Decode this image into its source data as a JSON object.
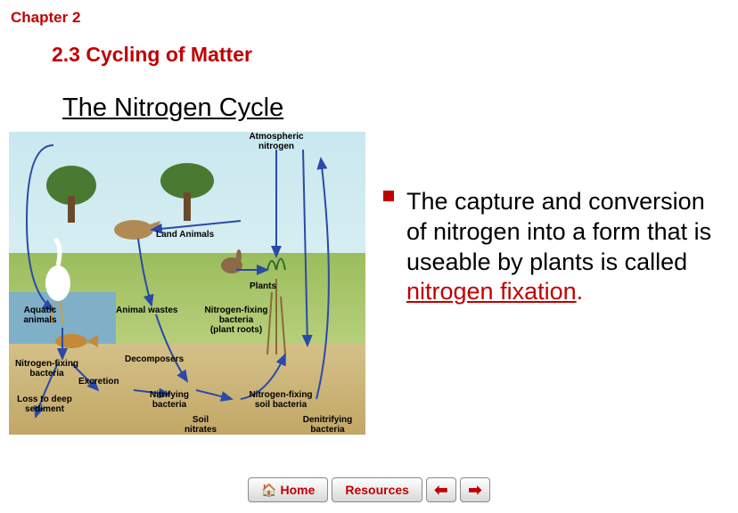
{
  "chapter": "Chapter 2",
  "section": "2.3 Cycling of Matter",
  "title": "The Nitrogen Cycle",
  "bullet": {
    "pre": "The capture and conversion of nitrogen into a form that is useable by plants is called ",
    "term": "nitrogen fixation",
    "post": "."
  },
  "diagram": {
    "labels": {
      "atm": "Atmospheric\nnitrogen",
      "land_animals": "Land Animals",
      "aquatic_animals": "Aquatic\nanimals",
      "animal_wastes": "Animal wastes",
      "plants": "Plants",
      "nfix_roots": "Nitrogen-fixing\nbacteria\n(plant roots)",
      "nfix_bacteria": "Nitrogen-fixing\nbacteria",
      "decomposers": "Decomposers",
      "excretion": "Excretion",
      "loss": "Loss to deep\nsediment",
      "nitrifying": "Nitrifying\nbacteria",
      "soil_nitrates": "Soil\nnitrates",
      "nfix_soil": "Nitrogen-fixing\nsoil bacteria",
      "denitrifying": "Denitrifying\nbacteria"
    }
  },
  "nav": {
    "home": "Home",
    "resources": "Resources"
  },
  "colors": {
    "accent": "#c00000",
    "arrow": "#2a4aa8"
  }
}
